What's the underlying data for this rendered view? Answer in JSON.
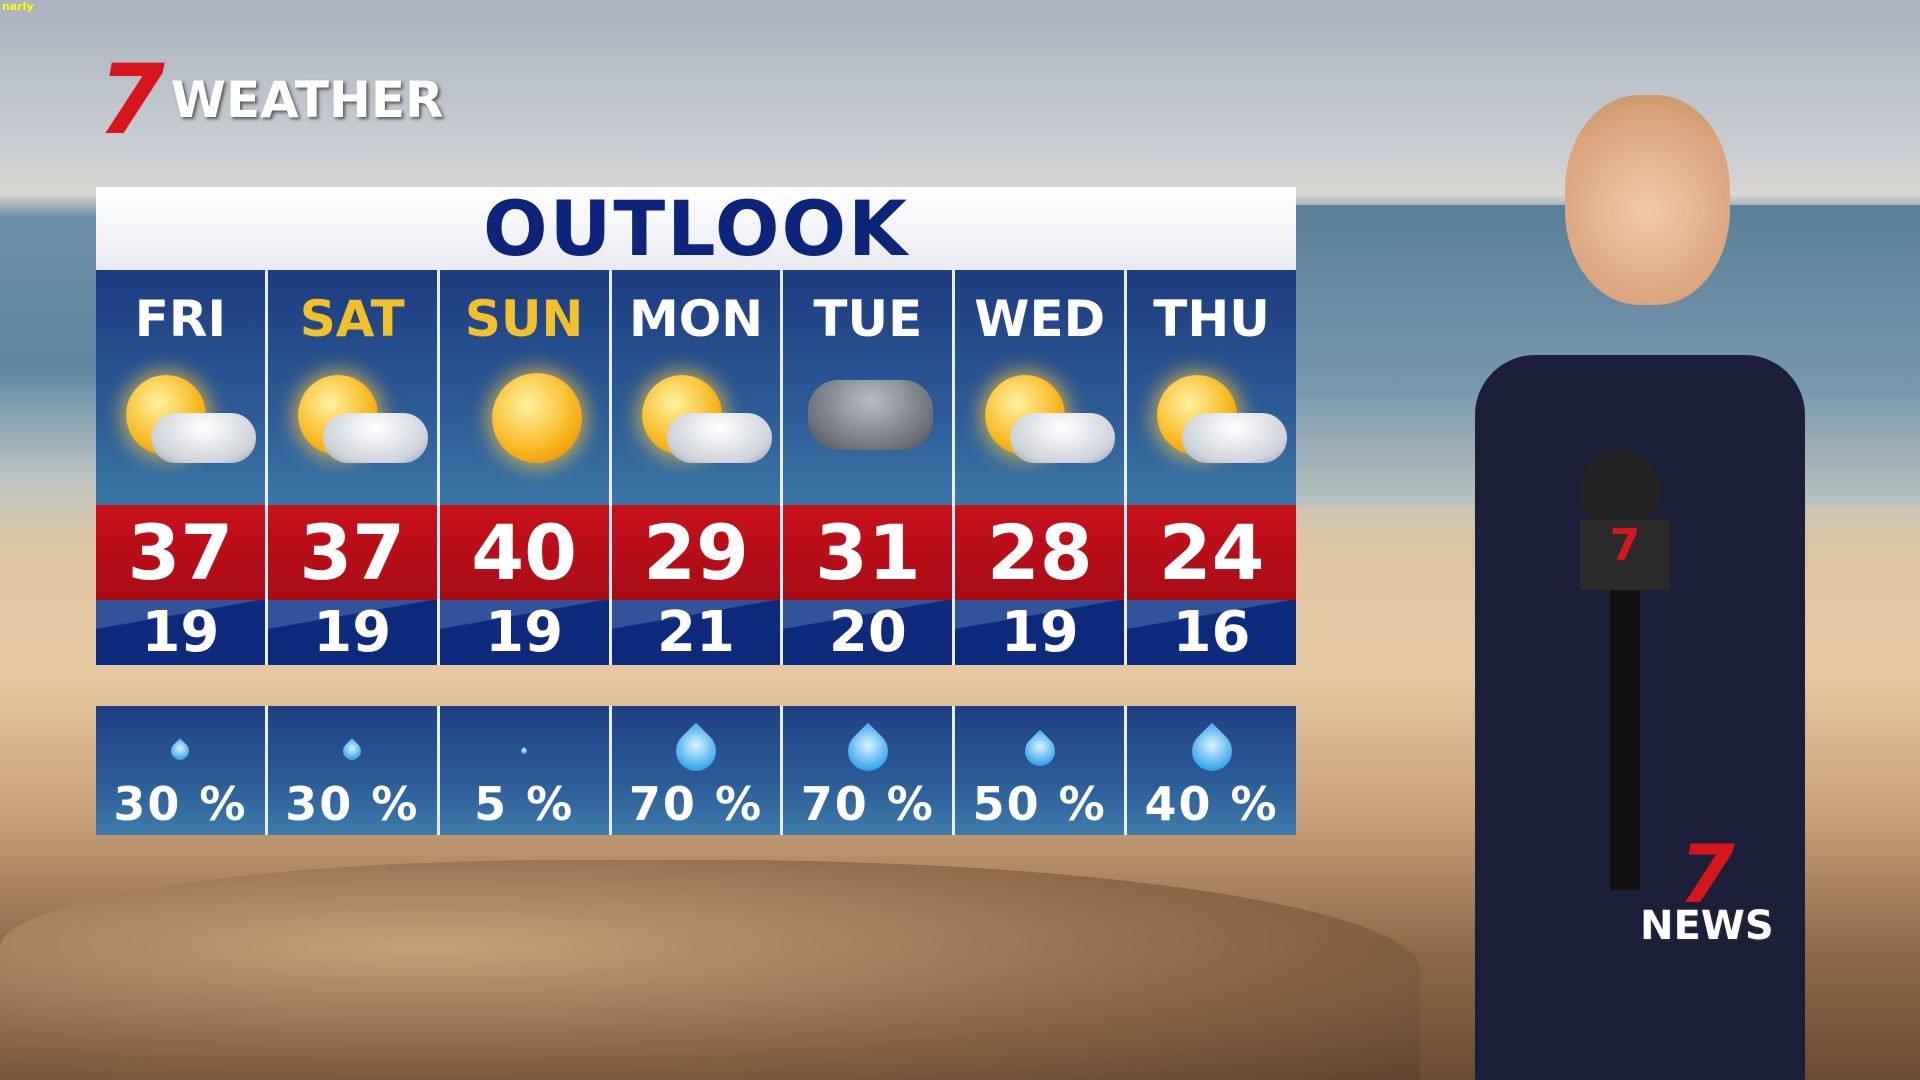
{
  "overlay_tag": "narly",
  "brand": {
    "logo_mark": "7",
    "logo_text": "WEATHER",
    "news_mark": "7",
    "news_text": "NEWS"
  },
  "outlook": {
    "title": "OUTLOOK",
    "days": [
      {
        "day": "FRI",
        "weekend": false,
        "icon": "sun-cloud",
        "high": "37",
        "low": "19",
        "rain": "30 %",
        "rain_level": 1
      },
      {
        "day": "SAT",
        "weekend": true,
        "icon": "sun-cloud",
        "high": "37",
        "low": "19",
        "rain": "30 %",
        "rain_level": 1
      },
      {
        "day": "SUN",
        "weekend": true,
        "icon": "sun",
        "high": "40",
        "low": "19",
        "rain": "5 %",
        "rain_level": 0
      },
      {
        "day": "MON",
        "weekend": false,
        "icon": "sun-cloud",
        "high": "29",
        "low": "21",
        "rain": "70 %",
        "rain_level": 3
      },
      {
        "day": "TUE",
        "weekend": false,
        "icon": "storm-cloud",
        "high": "31",
        "low": "20",
        "rain": "70 %",
        "rain_level": 3
      },
      {
        "day": "WED",
        "weekend": false,
        "icon": "sun-cloud",
        "high": "28",
        "low": "19",
        "rain": "50 %",
        "rain_level": 2
      },
      {
        "day": "THU",
        "weekend": false,
        "icon": "sun-cloud",
        "high": "24",
        "low": "16",
        "rain": "40 %",
        "rain_level": 3
      }
    ]
  },
  "colors": {
    "high_bg": "#c8101b",
    "low_bg": "#0e2a7c",
    "title": "#0c2479",
    "weekend": "#f1c12a",
    "brand_red": "#d6151d"
  }
}
